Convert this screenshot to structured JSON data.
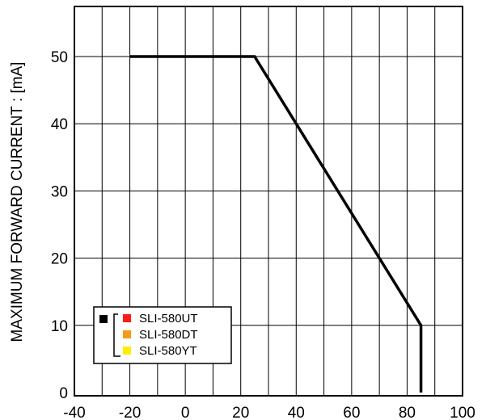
{
  "chart_data": {
    "type": "line",
    "xlabel": "",
    "ylabel": "MAXIMUM FORWARD CURRENT :  [mA]",
    "xlim": [
      -40,
      100
    ],
    "ylim": [
      0,
      55
    ],
    "x_ticks": [
      "-40",
      "-20",
      "0",
      "20",
      "40",
      "60",
      "80",
      "100"
    ],
    "y_ticks": [
      "0",
      "10",
      "20",
      "30",
      "40",
      "50"
    ],
    "grid": true,
    "series": [
      {
        "x": [
          -20,
          25,
          85,
          85
        ],
        "y": [
          50,
          50,
          10,
          0
        ],
        "color": "#000000"
      }
    ],
    "legend": {
      "placement": "bottom-left",
      "group_swatch_color": "#000000",
      "entries": [
        {
          "label": "SLI-580UT",
          "color": "#ff1a1a"
        },
        {
          "label": "SLI-580DT",
          "color": "#f29a1a"
        },
        {
          "label": "SLI-580YT",
          "color": "#ffee00"
        }
      ]
    }
  }
}
